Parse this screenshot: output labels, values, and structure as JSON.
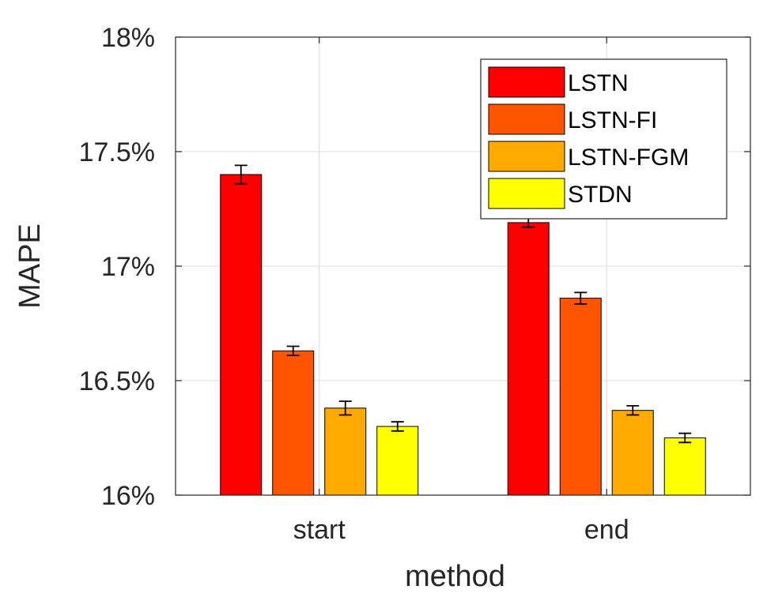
{
  "chart_data": {
    "type": "bar",
    "title": "",
    "xlabel": "method",
    "ylabel": "MAPE",
    "categories": [
      "start",
      "end"
    ],
    "ylim": [
      16,
      18
    ],
    "yticks": [
      16,
      16.5,
      17,
      17.5,
      18
    ],
    "ytick_labels": [
      "16%",
      "16.5%",
      "17%",
      "17.5%",
      "18%"
    ],
    "grid": true,
    "legend_position": "top-right",
    "series": [
      {
        "name": "LSTN",
        "color": "#ff0000",
        "values": [
          17.4,
          17.19
        ],
        "errors": [
          0.04,
          0.02
        ]
      },
      {
        "name": "LSTN-FI",
        "color": "#ff5500",
        "values": [
          16.63,
          16.86
        ],
        "errors": [
          0.02,
          0.025
        ]
      },
      {
        "name": "LSTN-FGM",
        "color": "#ffaa00",
        "values": [
          16.38,
          16.37
        ],
        "errors": [
          0.03,
          0.02
        ]
      },
      {
        "name": "STDN",
        "color": "#ffff00",
        "values": [
          16.3,
          16.25
        ],
        "errors": [
          0.02,
          0.02
        ]
      }
    ]
  }
}
